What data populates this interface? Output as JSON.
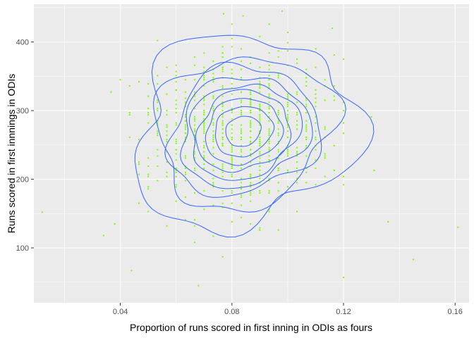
{
  "chart_data": {
    "type": "scatter",
    "xlabel": "Proportion of runs scored in first inning in ODIs as fours",
    "ylabel": "Runs scored in first innnings in ODIs",
    "xlim": [
      0.009,
      0.165
    ],
    "ylim": [
      20,
      455
    ],
    "x_ticks": [
      0.04,
      0.08,
      0.12,
      0.16
    ],
    "x_tick_labels": [
      "0.04",
      "0.08",
      "0.12",
      "0.16"
    ],
    "y_ticks": [
      100,
      200,
      300,
      400
    ],
    "y_tick_labels": [
      "100",
      "200",
      "300",
      "400"
    ],
    "grid": true,
    "legend": "none",
    "point_color": "#7CFC00",
    "contour_color": "#3366FF",
    "panel_background": "#EBEBEB",
    "density": {
      "center": [
        0.084,
        270
      ],
      "sd": [
        0.0165,
        58
      ],
      "rho": 0.12,
      "levels": [
        0.93,
        0.82,
        0.71,
        0.6,
        0.49,
        0.38,
        0.27,
        0.16,
        0.055
      ]
    },
    "notable_points": [
      [
        0.012,
        152
      ],
      [
        0.161,
        130
      ],
      [
        0.145,
        83
      ],
      [
        0.034,
        118
      ],
      [
        0.068,
        45
      ],
      [
        0.098,
        445
      ],
      [
        0.077,
        441
      ],
      [
        0.084,
        438
      ],
      [
        0.116,
        420
      ],
      [
        0.12,
        57
      ],
      [
        0.136,
        138
      ],
      [
        0.131,
        213
      ],
      [
        0.038,
        135
      ],
      [
        0.044,
        67
      ]
    ],
    "n_points": 720
  }
}
